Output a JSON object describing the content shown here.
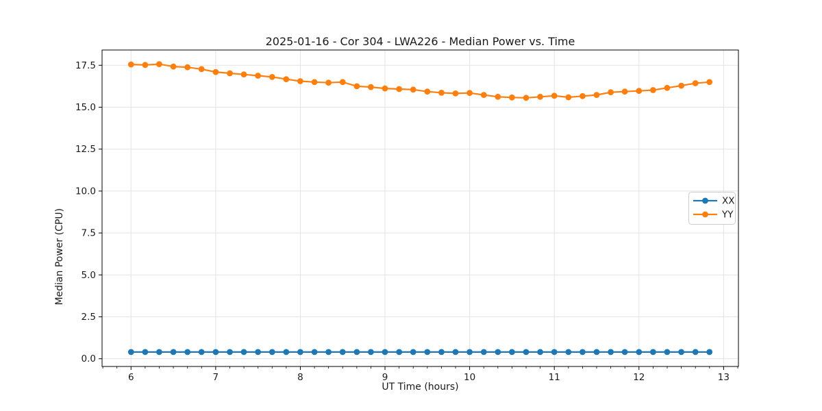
{
  "figure": {
    "kind": "matplotlib-line-plot"
  },
  "chart_data": {
    "type": "line",
    "title": "2025-01-16 - Cor 304 - LWA226 - Median Power vs. Time",
    "xlabel": "UT Time (hours)",
    "ylabel": "Median Power (CPU)",
    "xlim": [
      5.658,
      13.175
    ],
    "ylim": [
      -0.46,
      18.41
    ],
    "x_ticks": [
      6,
      7,
      8,
      9,
      10,
      11,
      12,
      13
    ],
    "y_ticks": [
      0.0,
      2.5,
      5.0,
      7.5,
      10.0,
      12.5,
      15.0,
      17.5
    ],
    "x_minor_tick_step": 0.16667,
    "grid": true,
    "grid_color": "#e3e3e3",
    "axis_color": "#000000",
    "text_color": "#1a1a1a",
    "background": "#ffffff",
    "legend_loc": "center right",
    "x": [
      6.0,
      6.167,
      6.333,
      6.5,
      6.667,
      6.833,
      7.0,
      7.167,
      7.333,
      7.5,
      7.667,
      7.833,
      8.0,
      8.167,
      8.333,
      8.5,
      8.667,
      8.833,
      9.0,
      9.167,
      9.333,
      9.5,
      9.667,
      9.833,
      10.0,
      10.167,
      10.333,
      10.5,
      10.667,
      10.833,
      11.0,
      11.167,
      11.333,
      11.5,
      11.667,
      11.833,
      12.0,
      12.167,
      12.333,
      12.5,
      12.667,
      12.833
    ],
    "series": [
      {
        "name": "XX",
        "color": "#1f77b4",
        "marker": "circle",
        "values": [
          0.4,
          0.4,
          0.4,
          0.4,
          0.4,
          0.4,
          0.4,
          0.4,
          0.4,
          0.4,
          0.4,
          0.4,
          0.4,
          0.4,
          0.4,
          0.4,
          0.4,
          0.4,
          0.4,
          0.4,
          0.4,
          0.4,
          0.4,
          0.4,
          0.4,
          0.4,
          0.4,
          0.4,
          0.4,
          0.4,
          0.4,
          0.4,
          0.4,
          0.4,
          0.4,
          0.4,
          0.4,
          0.4,
          0.4,
          0.4,
          0.4,
          0.4
        ]
      },
      {
        "name": "YY",
        "color": "#ff7f0e",
        "marker": "circle",
        "values": [
          17.55,
          17.52,
          17.57,
          17.42,
          17.38,
          17.27,
          17.1,
          17.02,
          16.95,
          16.88,
          16.8,
          16.67,
          16.55,
          16.5,
          16.46,
          16.5,
          16.25,
          16.2,
          16.12,
          16.08,
          16.05,
          15.93,
          15.86,
          15.82,
          15.85,
          15.73,
          15.62,
          15.58,
          15.56,
          15.62,
          15.68,
          15.59,
          15.66,
          15.73,
          15.89,
          15.93,
          15.97,
          16.02,
          16.15,
          16.28,
          16.43,
          16.5
        ]
      }
    ]
  }
}
